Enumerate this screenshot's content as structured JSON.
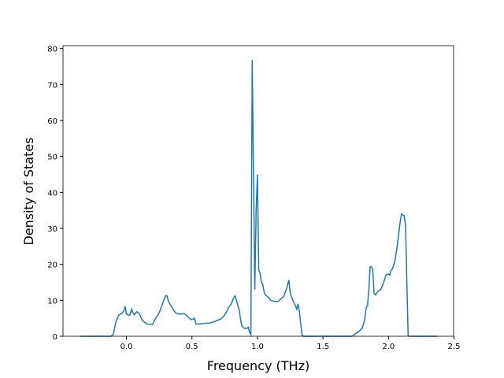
{
  "chart_data": {
    "type": "line",
    "xlabel": "Frequency (THz)",
    "ylabel": "Density of States",
    "xlim": [
      -0.484,
      2.497
    ],
    "ylim": [
      0,
      80.8
    ],
    "xticks": [
      {
        "value": 0,
        "label": "0.0"
      },
      0.5,
      {
        "value": 1,
        "label": "1.0"
      },
      1.5,
      {
        "value": 2,
        "label": "2.0"
      },
      2.5
    ],
    "yticks": [
      0,
      10,
      20,
      30,
      40,
      50,
      60,
      70,
      80
    ],
    "series": [
      {
        "color": "#1f77b4",
        "x": [
          -0.35,
          -0.12,
          -0.1,
          -0.08,
          -0.06,
          -0.04,
          -0.02,
          -0.01,
          0.0,
          0.02,
          0.03,
          0.04,
          0.05,
          0.06,
          0.08,
          0.1,
          0.12,
          0.14,
          0.16,
          0.18,
          0.2,
          0.22,
          0.25,
          0.27,
          0.29,
          0.3,
          0.31,
          0.32,
          0.34,
          0.36,
          0.38,
          0.4,
          0.42,
          0.44,
          0.46,
          0.48,
          0.5,
          0.52,
          0.53,
          0.56,
          0.6,
          0.64,
          0.68,
          0.7,
          0.72,
          0.74,
          0.76,
          0.78,
          0.8,
          0.82,
          0.83,
          0.84,
          0.85,
          0.86,
          0.87,
          0.88,
          0.9,
          0.92,
          0.93,
          0.94,
          0.95,
          0.96,
          0.98,
          0.99,
          1.0,
          1.01,
          1.02,
          1.03,
          1.04,
          1.05,
          1.06,
          1.08,
          1.1,
          1.14,
          1.16,
          1.18,
          1.2,
          1.22,
          1.24,
          1.25,
          1.27,
          1.29,
          1.3,
          1.31,
          1.32,
          1.34,
          1.35,
          1.72,
          1.74,
          1.76,
          1.78,
          1.8,
          1.81,
          1.82,
          1.83,
          1.84,
          1.85,
          1.86,
          1.87,
          1.88,
          1.89,
          1.9,
          1.92,
          1.94,
          1.96,
          1.98,
          2.0,
          2.01,
          2.02,
          2.03,
          2.05,
          2.07,
          2.09,
          2.1,
          2.12,
          2.13,
          2.15,
          2.16,
          2.37
        ],
        "values": [
          0,
          0,
          0.5,
          4,
          5.8,
          6.3,
          7,
          8.3,
          6.2,
          5.8,
          6.2,
          7.5,
          6.5,
          6,
          6.8,
          6.2,
          4.5,
          3.8,
          3.4,
          3.3,
          3.3,
          4.8,
          6.5,
          8.5,
          10.5,
          11.3,
          11.2,
          9.8,
          8.5,
          7.2,
          6.4,
          6.2,
          6.2,
          6.3,
          5.8,
          5,
          4.6,
          5,
          3.4,
          3.4,
          3.6,
          3.7,
          4.2,
          4.5,
          4.8,
          5.5,
          6.5,
          8,
          9,
          10.8,
          11.2,
          10,
          8.5,
          7.5,
          5,
          3,
          2.2,
          2.2,
          2.5,
          1,
          0.5,
          76.8,
          13,
          35,
          45,
          18.5,
          17.5,
          15,
          14.5,
          12.5,
          11.5,
          11,
          10,
          9.6,
          9.7,
          10.5,
          11,
          13,
          15.6,
          12,
          10,
          8.5,
          7.5,
          9,
          7,
          0.3,
          0,
          0,
          0.5,
          1,
          1.5,
          2.3,
          3.5,
          5,
          8,
          8.5,
          13,
          19.3,
          19.3,
          18.5,
          12,
          11.5,
          12.5,
          13,
          14.5,
          17,
          17.3,
          17,
          18.5,
          18.7,
          21,
          26,
          32,
          34,
          33.5,
          31,
          0.2,
          0,
          0
        ]
      }
    ]
  }
}
